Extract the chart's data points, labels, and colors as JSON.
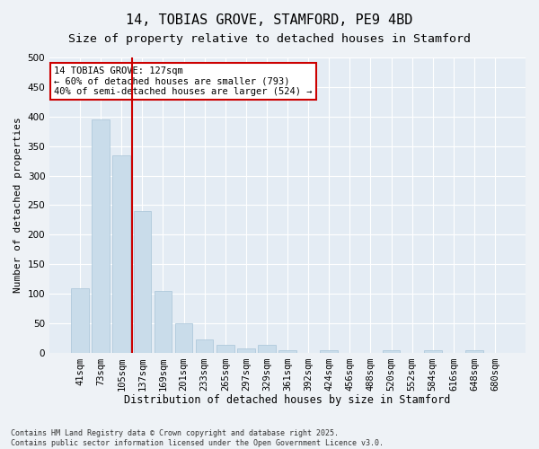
{
  "title": "14, TOBIAS GROVE, STAMFORD, PE9 4BD",
  "subtitle": "Size of property relative to detached houses in Stamford",
  "xlabel": "Distribution of detached houses by size in Stamford",
  "ylabel": "Number of detached properties",
  "categories": [
    "41sqm",
    "73sqm",
    "105sqm",
    "137sqm",
    "169sqm",
    "201sqm",
    "233sqm",
    "265sqm",
    "297sqm",
    "329sqm",
    "361sqm",
    "392sqm",
    "424sqm",
    "456sqm",
    "488sqm",
    "520sqm",
    "552sqm",
    "584sqm",
    "616sqm",
    "648sqm",
    "680sqm"
  ],
  "values": [
    110,
    395,
    335,
    240,
    105,
    50,
    22,
    13,
    8,
    13,
    5,
    0,
    5,
    0,
    0,
    5,
    0,
    5,
    0,
    5,
    0
  ],
  "bar_color": "#c9dcea",
  "bar_edge_color": "#a8c4d8",
  "vline_pos": 2.5,
  "vline_color": "#cc0000",
  "annotation_text": "14 TOBIAS GROVE: 127sqm\n← 60% of detached houses are smaller (793)\n40% of semi-detached houses are larger (524) →",
  "annotation_box_facecolor": "#ffffff",
  "annotation_box_edgecolor": "#cc0000",
  "annotation_fontsize": 7.5,
  "background_color": "#eef2f6",
  "plot_bg_color": "#e4ecf4",
  "grid_color": "#ffffff",
  "ylim": [
    0,
    500
  ],
  "yticks": [
    0,
    50,
    100,
    150,
    200,
    250,
    300,
    350,
    400,
    450,
    500
  ],
  "footer": "Contains HM Land Registry data © Crown copyright and database right 2025.\nContains public sector information licensed under the Open Government Licence v3.0.",
  "title_fontsize": 11,
  "subtitle_fontsize": 9.5,
  "xlabel_fontsize": 8.5,
  "ylabel_fontsize": 8,
  "tick_fontsize": 7.5
}
